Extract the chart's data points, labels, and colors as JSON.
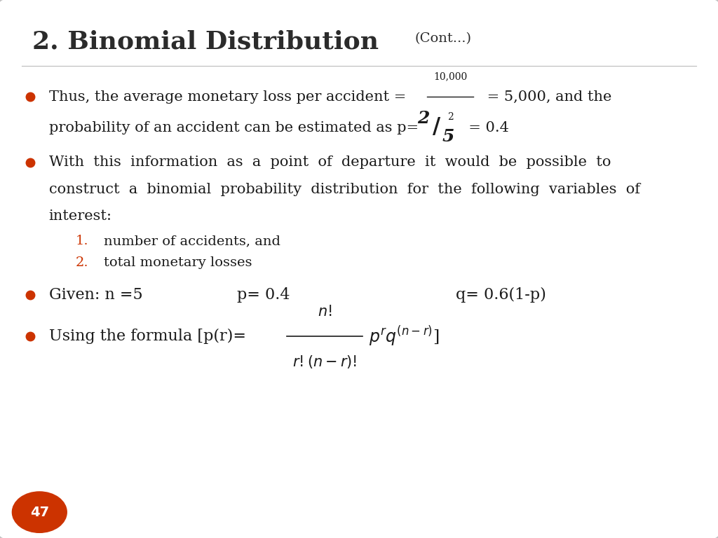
{
  "title_main": "2. Binomial Distribution",
  "title_cont": "(Cont...)",
  "bg_color": "#ffffff",
  "border_color": "#c0c0c0",
  "title_color": "#2b2b2b",
  "bullet_color": "#cc3300",
  "number_color": "#cc3300",
  "page_number": "47",
  "page_circle_color": "#cc3300",
  "page_number_color": "#ffffff",
  "body_color": "#1a1a1a",
  "figsize": [
    10.24,
    7.68
  ],
  "dpi": 100
}
